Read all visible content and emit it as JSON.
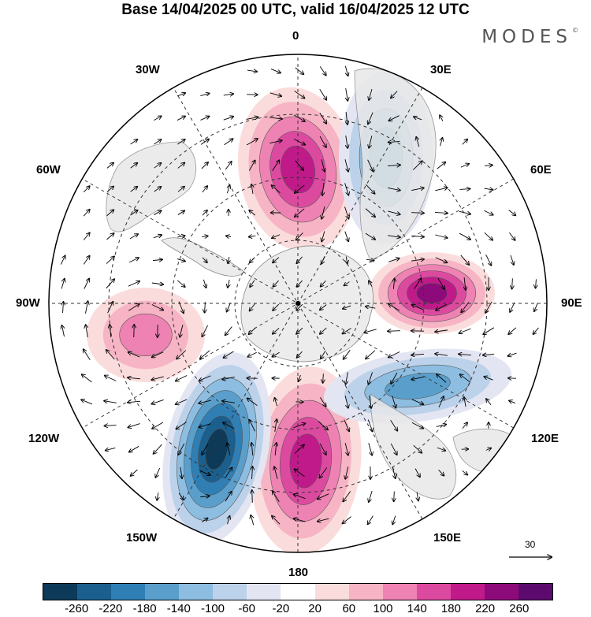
{
  "title": "Base 14/04/2025 00 UTC, valid 16/04/2025 12 UTC",
  "logo": "MODES",
  "logo_mark": "©",
  "longitude_labels": {
    "top": "0",
    "bottom": "180",
    "left": "90W",
    "right": "90E",
    "nw30": "30W",
    "ne30": "30E",
    "w60": "60W",
    "e60": "60E",
    "w120": "120W",
    "e120": "120E",
    "sw150": "150W",
    "se150": "150E"
  },
  "reference_vector": "30",
  "colorbar": {
    "colors": [
      "#0e3a5a",
      "#1a5f8e",
      "#2f7fb5",
      "#5a9fcc",
      "#8dbde0",
      "#bcd2ea",
      "#e3e6f2",
      "#ffffff",
      "#fbdcdc",
      "#f6b4c4",
      "#ee82b3",
      "#dc4aa0",
      "#c01a8a",
      "#8d0a7a",
      "#5c0a6e"
    ],
    "ticks": [
      "-260",
      "-220",
      "-180",
      "-140",
      "-100",
      "-60",
      "-20",
      "20",
      "60",
      "100",
      "140",
      "180",
      "220",
      "260"
    ]
  },
  "anomaly_centers": [
    {
      "lon_label": "0",
      "sign": "positive",
      "level": "220"
    },
    {
      "lon_label": "90E",
      "sign": "positive",
      "level": "260"
    },
    {
      "lon_label": "180",
      "sign": "positive",
      "level": "220"
    },
    {
      "lon_label": "150W",
      "sign": "negative",
      "level": "-260"
    },
    {
      "lon_label": "30E",
      "sign": "negative",
      "level": "-140"
    },
    {
      "lon_label": "120E",
      "sign": "negative",
      "level": "-140"
    },
    {
      "lon_label": "90W",
      "sign": "positive",
      "level": "140"
    }
  ]
}
